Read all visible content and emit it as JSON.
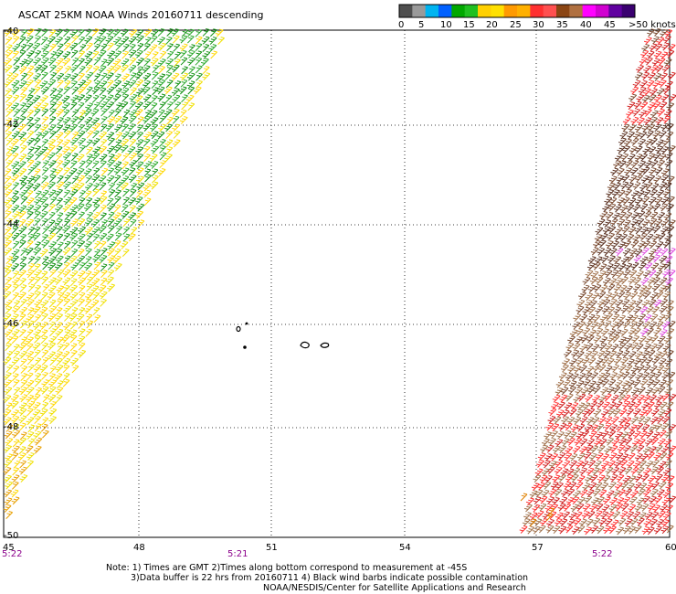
{
  "title": "ASCAT 25KM NOAA Winds 20160711 descending",
  "legend": {
    "labels": [
      "0",
      "5",
      "10",
      "15",
      "20",
      "25",
      "30",
      "35",
      "40",
      "45"
    ],
    "overflow_label": ">50 knots",
    "colors": [
      "#4f4f4f",
      "#9a9a9a",
      "#00b4f0",
      "#0060ff",
      "#00a800",
      "#20c020",
      "#ffd000",
      "#ffe000",
      "#ff9a00",
      "#ffb000",
      "#ff3030",
      "#ff5050",
      "#8b4513",
      "#b07040",
      "#ff00ff",
      "#d000d0",
      "#6000a0",
      "#3a0070"
    ]
  },
  "axes": {
    "lat_labels": [
      "-40",
      "-42",
      "-44",
      "-46",
      "-48",
      "-50"
    ],
    "lon_labels": [
      "45",
      "48",
      "51",
      "54",
      "57",
      "60"
    ]
  },
  "times": [
    "5:22",
    "5:21",
    "5:22"
  ],
  "notes": [
    "Note: 1) Times are GMT 2)Times along bottom correspond to measurement at -45S",
    "3)Data buffer is 22 hrs from 20160711 4) Black wind barbs indicate possible contamination",
    "NOAA/NESDIS/Center for Satellite Applications and Research"
  ],
  "swaths": {
    "west": {
      "palette": [
        "#ffd800",
        "#f0e000",
        "#e8a000",
        "#2aa82a",
        "#109010"
      ]
    },
    "east": {
      "palette": [
        "#5a3020",
        "#7a4a30",
        "#a0704a",
        "#d02020",
        "#ff3030",
        "#e050e0"
      ]
    }
  }
}
